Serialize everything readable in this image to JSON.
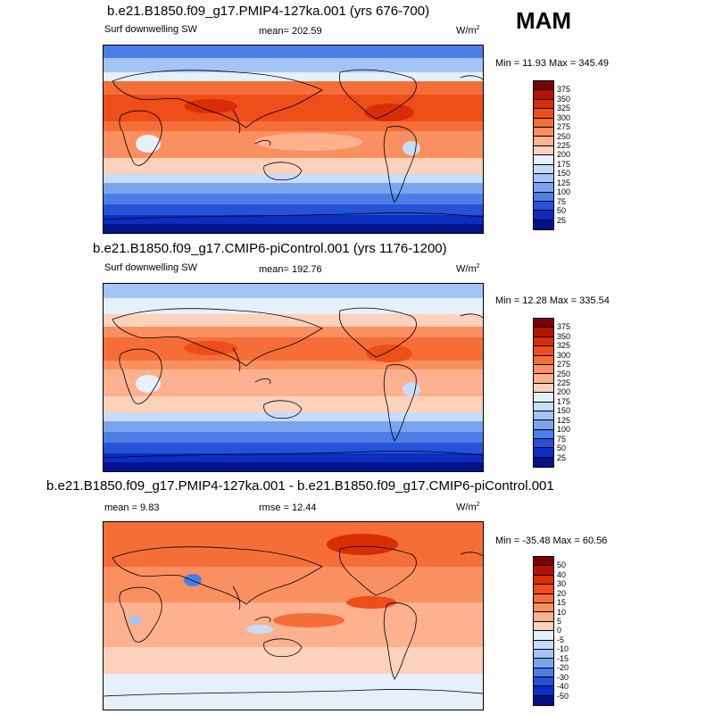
{
  "season": "MAM",
  "panels": [
    {
      "title": "b.e21.B1850.f09_g17.PMIP4-127ka.001 (yrs 676-700)",
      "left_label": "Surf downwelling SW",
      "mean_label": "mean= 202.59",
      "units": "W/m",
      "units_sup": "2",
      "minmax": "Min =  11.93 Max = 345.49",
      "colorbar": {
        "labels": [
          "375",
          "350",
          "325",
          "300",
          "275",
          "250",
          "225",
          "200",
          "175",
          "150",
          "125",
          "100",
          "75",
          "50",
          "25"
        ],
        "colors": [
          "#7d0000",
          "#b31200",
          "#d92e05",
          "#ee4e18",
          "#f56e38",
          "#fa9060",
          "#fdb18e",
          "#fdd2bb",
          "#e5f0fb",
          "#c7dcf9",
          "#a4c4f5",
          "#7aa4ee",
          "#4d7ee6",
          "#2452d9",
          "#0a2dc2",
          "#00138a"
        ]
      }
    },
    {
      "title": "b.e21.B1850.f09_g17.CMIP6-piControl.001 (yrs 1176-1200)",
      "left_label": "Surf downwelling SW",
      "mean_label": "mean= 192.76",
      "units": "W/m",
      "units_sup": "2",
      "minmax": "Min =  12.28 Max = 335.54",
      "colorbar": {
        "labels": [
          "375",
          "350",
          "325",
          "300",
          "275",
          "250",
          "225",
          "200",
          "175",
          "150",
          "125",
          "100",
          "75",
          "50",
          "25"
        ],
        "colors": [
          "#7d0000",
          "#b31200",
          "#d92e05",
          "#ee4e18",
          "#f56e38",
          "#fa9060",
          "#fdb18e",
          "#fdd2bb",
          "#e5f0fb",
          "#c7dcf9",
          "#a4c4f5",
          "#7aa4ee",
          "#4d7ee6",
          "#2452d9",
          "#0a2dc2",
          "#00138a"
        ]
      }
    },
    {
      "title": "b.e21.B1850.f09_g17.PMIP4-127ka.001 - b.e21.B1850.f09_g17.CMIP6-piControl.001",
      "left_label": "mean =   9.83",
      "mean_label": "rmse =  12.44",
      "units": "W/m",
      "units_sup": "2",
      "minmax": "Min = -35.48 Max =  60.56",
      "colorbar": {
        "labels": [
          "50",
          "40",
          "30",
          "20",
          "15",
          "10",
          "5",
          "0",
          "-5",
          "-10",
          "-15",
          "-20",
          "-30",
          "-40",
          "-50"
        ],
        "colors": [
          "#7d0000",
          "#b31200",
          "#d92e05",
          "#ee4e18",
          "#f56e38",
          "#fa9060",
          "#fdb18e",
          "#fdd2bb",
          "#e5f0fb",
          "#c7dcf9",
          "#a4c4f5",
          "#7aa4ee",
          "#4d7ee6",
          "#2452d9",
          "#0a2dc2",
          "#00138a"
        ]
      }
    }
  ]
}
